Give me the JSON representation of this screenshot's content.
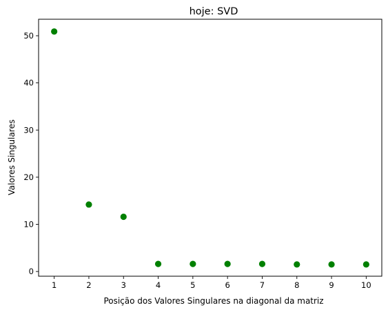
{
  "chart_data": {
    "type": "scatter",
    "title": "hoje: SVD",
    "xlabel": "Posição dos Valores Singulares na diagonal da matriz",
    "ylabel": "Valores Singulares",
    "x": [
      1,
      2,
      3,
      4,
      5,
      6,
      7,
      8,
      9,
      10
    ],
    "y": [
      50.9,
      14.2,
      11.6,
      1.6,
      1.6,
      1.6,
      1.6,
      1.5,
      1.5,
      1.5
    ],
    "xlim": [
      0.55,
      10.45
    ],
    "ylim": [
      -1.0,
      53.5
    ],
    "x_ticks": [
      1,
      2,
      3,
      4,
      5,
      6,
      7,
      8,
      9,
      10
    ],
    "y_ticks": [
      0,
      10,
      20,
      30,
      40,
      50
    ],
    "marker_color": "#008000",
    "grid": false,
    "legend": "none"
  }
}
